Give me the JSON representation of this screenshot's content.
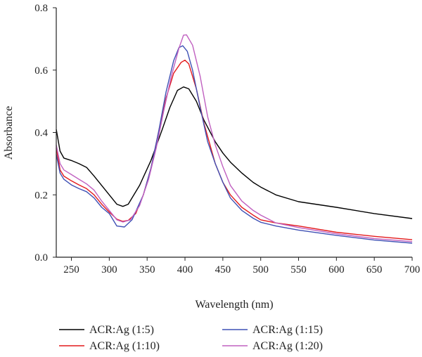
{
  "chart_data": {
    "type": "line",
    "title": "",
    "xlabel": "Wavelength (nm)",
    "ylabel": "Absorbance",
    "xlim": [
      230,
      700
    ],
    "ylim": [
      0.0,
      0.8
    ],
    "xticks": [
      "250",
      "300",
      "350",
      "400",
      "450",
      "500",
      "550",
      "600",
      "650",
      "700"
    ],
    "xtick_values": [
      250,
      300,
      350,
      400,
      450,
      500,
      550,
      600,
      650,
      700
    ],
    "yticks": [
      "0.0",
      "0.2",
      "0.4",
      "0.6",
      "0.8"
    ],
    "ytick_values": [
      0.0,
      0.2,
      0.4,
      0.6,
      0.8
    ],
    "grid": false,
    "legend_position": "bottom",
    "series": [
      {
        "name": "ACR:Ag (1:5)",
        "color": "#000000",
        "points": [
          [
            230,
            0.41
          ],
          [
            235,
            0.34
          ],
          [
            240,
            0.318
          ],
          [
            250,
            0.31
          ],
          [
            260,
            0.3
          ],
          [
            270,
            0.288
          ],
          [
            280,
            0.26
          ],
          [
            290,
            0.23
          ],
          [
            300,
            0.2
          ],
          [
            310,
            0.17
          ],
          [
            318,
            0.163
          ],
          [
            325,
            0.17
          ],
          [
            340,
            0.23
          ],
          [
            355,
            0.31
          ],
          [
            370,
            0.41
          ],
          [
            380,
            0.48
          ],
          [
            390,
            0.535
          ],
          [
            398,
            0.546
          ],
          [
            405,
            0.54
          ],
          [
            415,
            0.5
          ],
          [
            425,
            0.44
          ],
          [
            440,
            0.37
          ],
          [
            450,
            0.334
          ],
          [
            460,
            0.305
          ],
          [
            475,
            0.27
          ],
          [
            490,
            0.24
          ],
          [
            500,
            0.225
          ],
          [
            520,
            0.2
          ],
          [
            550,
            0.178
          ],
          [
            600,
            0.16
          ],
          [
            650,
            0.14
          ],
          [
            700,
            0.124
          ]
        ]
      },
      {
        "name": "ACR:Ag (1:10)",
        "color": "#e31a1c",
        "points": [
          [
            230,
            0.35
          ],
          [
            235,
            0.28
          ],
          [
            240,
            0.26
          ],
          [
            250,
            0.245
          ],
          [
            260,
            0.232
          ],
          [
            270,
            0.22
          ],
          [
            280,
            0.2
          ],
          [
            290,
            0.17
          ],
          [
            300,
            0.145
          ],
          [
            310,
            0.122
          ],
          [
            318,
            0.115
          ],
          [
            325,
            0.118
          ],
          [
            335,
            0.14
          ],
          [
            345,
            0.2
          ],
          [
            355,
            0.285
          ],
          [
            365,
            0.4
          ],
          [
            375,
            0.51
          ],
          [
            385,
            0.59
          ],
          [
            395,
            0.625
          ],
          [
            400,
            0.632
          ],
          [
            405,
            0.62
          ],
          [
            415,
            0.54
          ],
          [
            425,
            0.43
          ],
          [
            440,
            0.3
          ],
          [
            450,
            0.24
          ],
          [
            460,
            0.2
          ],
          [
            475,
            0.16
          ],
          [
            490,
            0.135
          ],
          [
            500,
            0.12
          ],
          [
            520,
            0.11
          ],
          [
            550,
            0.1
          ],
          [
            600,
            0.08
          ],
          [
            650,
            0.067
          ],
          [
            700,
            0.056
          ]
        ]
      },
      {
        "name": "ACR:Ag (1:15)",
        "color": "#3f51b5",
        "points": [
          [
            230,
            0.33
          ],
          [
            235,
            0.27
          ],
          [
            240,
            0.25
          ],
          [
            250,
            0.232
          ],
          [
            260,
            0.22
          ],
          [
            270,
            0.21
          ],
          [
            280,
            0.19
          ],
          [
            290,
            0.16
          ],
          [
            300,
            0.14
          ],
          [
            310,
            0.1
          ],
          [
            320,
            0.097
          ],
          [
            330,
            0.12
          ],
          [
            345,
            0.2
          ],
          [
            355,
            0.285
          ],
          [
            365,
            0.4
          ],
          [
            375,
            0.53
          ],
          [
            385,
            0.63
          ],
          [
            392,
            0.672
          ],
          [
            397,
            0.678
          ],
          [
            403,
            0.66
          ],
          [
            410,
            0.6
          ],
          [
            420,
            0.48
          ],
          [
            430,
            0.37
          ],
          [
            440,
            0.3
          ],
          [
            450,
            0.24
          ],
          [
            460,
            0.19
          ],
          [
            475,
            0.15
          ],
          [
            490,
            0.125
          ],
          [
            500,
            0.112
          ],
          [
            520,
            0.1
          ],
          [
            550,
            0.087
          ],
          [
            600,
            0.07
          ],
          [
            650,
            0.055
          ],
          [
            700,
            0.045
          ]
        ]
      },
      {
        "name": "ACR:Ag (1:20)",
        "color": "#c060c0",
        "points": [
          [
            230,
            0.36
          ],
          [
            235,
            0.3
          ],
          [
            240,
            0.28
          ],
          [
            250,
            0.265
          ],
          [
            260,
            0.25
          ],
          [
            270,
            0.235
          ],
          [
            280,
            0.215
          ],
          [
            290,
            0.18
          ],
          [
            300,
            0.15
          ],
          [
            310,
            0.12
          ],
          [
            318,
            0.113
          ],
          [
            328,
            0.12
          ],
          [
            340,
            0.165
          ],
          [
            352,
            0.25
          ],
          [
            362,
            0.35
          ],
          [
            372,
            0.47
          ],
          [
            382,
            0.58
          ],
          [
            392,
            0.67
          ],
          [
            398,
            0.712
          ],
          [
            402,
            0.713
          ],
          [
            410,
            0.68
          ],
          [
            420,
            0.58
          ],
          [
            430,
            0.45
          ],
          [
            440,
            0.36
          ],
          [
            450,
            0.29
          ],
          [
            460,
            0.23
          ],
          [
            475,
            0.18
          ],
          [
            490,
            0.15
          ],
          [
            500,
            0.135
          ],
          [
            520,
            0.11
          ],
          [
            550,
            0.095
          ],
          [
            600,
            0.075
          ],
          [
            650,
            0.06
          ],
          [
            700,
            0.05
          ]
        ]
      }
    ]
  }
}
